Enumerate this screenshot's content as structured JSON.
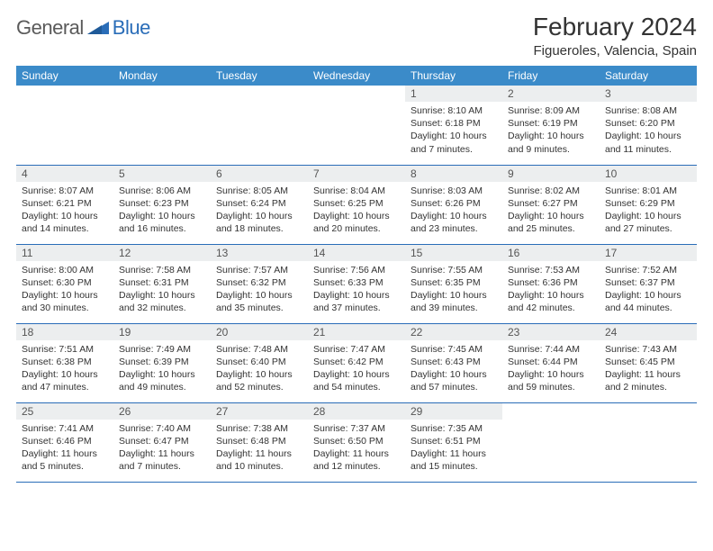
{
  "logo": {
    "general": "General",
    "blue": "Blue"
  },
  "header": {
    "title": "February 2024",
    "location": "Figueroles, Valencia, Spain"
  },
  "colors": {
    "header_bg": "#3b8bc9",
    "rule": "#2a6db8",
    "daynum_bg": "#eceeef",
    "text": "#333333",
    "logo_gray": "#5a5a5a",
    "logo_blue": "#2a6db8"
  },
  "weekdays": [
    "Sunday",
    "Monday",
    "Tuesday",
    "Wednesday",
    "Thursday",
    "Friday",
    "Saturday"
  ],
  "weeks": [
    [
      null,
      null,
      null,
      null,
      {
        "n": "1",
        "sr": "8:10 AM",
        "ss": "6:18 PM",
        "dl": "10 hours and 7 minutes."
      },
      {
        "n": "2",
        "sr": "8:09 AM",
        "ss": "6:19 PM",
        "dl": "10 hours and 9 minutes."
      },
      {
        "n": "3",
        "sr": "8:08 AM",
        "ss": "6:20 PM",
        "dl": "10 hours and 11 minutes."
      }
    ],
    [
      {
        "n": "4",
        "sr": "8:07 AM",
        "ss": "6:21 PM",
        "dl": "10 hours and 14 minutes."
      },
      {
        "n": "5",
        "sr": "8:06 AM",
        "ss": "6:23 PM",
        "dl": "10 hours and 16 minutes."
      },
      {
        "n": "6",
        "sr": "8:05 AM",
        "ss": "6:24 PM",
        "dl": "10 hours and 18 minutes."
      },
      {
        "n": "7",
        "sr": "8:04 AM",
        "ss": "6:25 PM",
        "dl": "10 hours and 20 minutes."
      },
      {
        "n": "8",
        "sr": "8:03 AM",
        "ss": "6:26 PM",
        "dl": "10 hours and 23 minutes."
      },
      {
        "n": "9",
        "sr": "8:02 AM",
        "ss": "6:27 PM",
        "dl": "10 hours and 25 minutes."
      },
      {
        "n": "10",
        "sr": "8:01 AM",
        "ss": "6:29 PM",
        "dl": "10 hours and 27 minutes."
      }
    ],
    [
      {
        "n": "11",
        "sr": "8:00 AM",
        "ss": "6:30 PM",
        "dl": "10 hours and 30 minutes."
      },
      {
        "n": "12",
        "sr": "7:58 AM",
        "ss": "6:31 PM",
        "dl": "10 hours and 32 minutes."
      },
      {
        "n": "13",
        "sr": "7:57 AM",
        "ss": "6:32 PM",
        "dl": "10 hours and 35 minutes."
      },
      {
        "n": "14",
        "sr": "7:56 AM",
        "ss": "6:33 PM",
        "dl": "10 hours and 37 minutes."
      },
      {
        "n": "15",
        "sr": "7:55 AM",
        "ss": "6:35 PM",
        "dl": "10 hours and 39 minutes."
      },
      {
        "n": "16",
        "sr": "7:53 AM",
        "ss": "6:36 PM",
        "dl": "10 hours and 42 minutes."
      },
      {
        "n": "17",
        "sr": "7:52 AM",
        "ss": "6:37 PM",
        "dl": "10 hours and 44 minutes."
      }
    ],
    [
      {
        "n": "18",
        "sr": "7:51 AM",
        "ss": "6:38 PM",
        "dl": "10 hours and 47 minutes."
      },
      {
        "n": "19",
        "sr": "7:49 AM",
        "ss": "6:39 PM",
        "dl": "10 hours and 49 minutes."
      },
      {
        "n": "20",
        "sr": "7:48 AM",
        "ss": "6:40 PM",
        "dl": "10 hours and 52 minutes."
      },
      {
        "n": "21",
        "sr": "7:47 AM",
        "ss": "6:42 PM",
        "dl": "10 hours and 54 minutes."
      },
      {
        "n": "22",
        "sr": "7:45 AM",
        "ss": "6:43 PM",
        "dl": "10 hours and 57 minutes."
      },
      {
        "n": "23",
        "sr": "7:44 AM",
        "ss": "6:44 PM",
        "dl": "10 hours and 59 minutes."
      },
      {
        "n": "24",
        "sr": "7:43 AM",
        "ss": "6:45 PM",
        "dl": "11 hours and 2 minutes."
      }
    ],
    [
      {
        "n": "25",
        "sr": "7:41 AM",
        "ss": "6:46 PM",
        "dl": "11 hours and 5 minutes."
      },
      {
        "n": "26",
        "sr": "7:40 AM",
        "ss": "6:47 PM",
        "dl": "11 hours and 7 minutes."
      },
      {
        "n": "27",
        "sr": "7:38 AM",
        "ss": "6:48 PM",
        "dl": "11 hours and 10 minutes."
      },
      {
        "n": "28",
        "sr": "7:37 AM",
        "ss": "6:50 PM",
        "dl": "11 hours and 12 minutes."
      },
      {
        "n": "29",
        "sr": "7:35 AM",
        "ss": "6:51 PM",
        "dl": "11 hours and 15 minutes."
      },
      null,
      null
    ]
  ],
  "labels": {
    "sunrise": "Sunrise:",
    "sunset": "Sunset:",
    "daylight": "Daylight:"
  }
}
